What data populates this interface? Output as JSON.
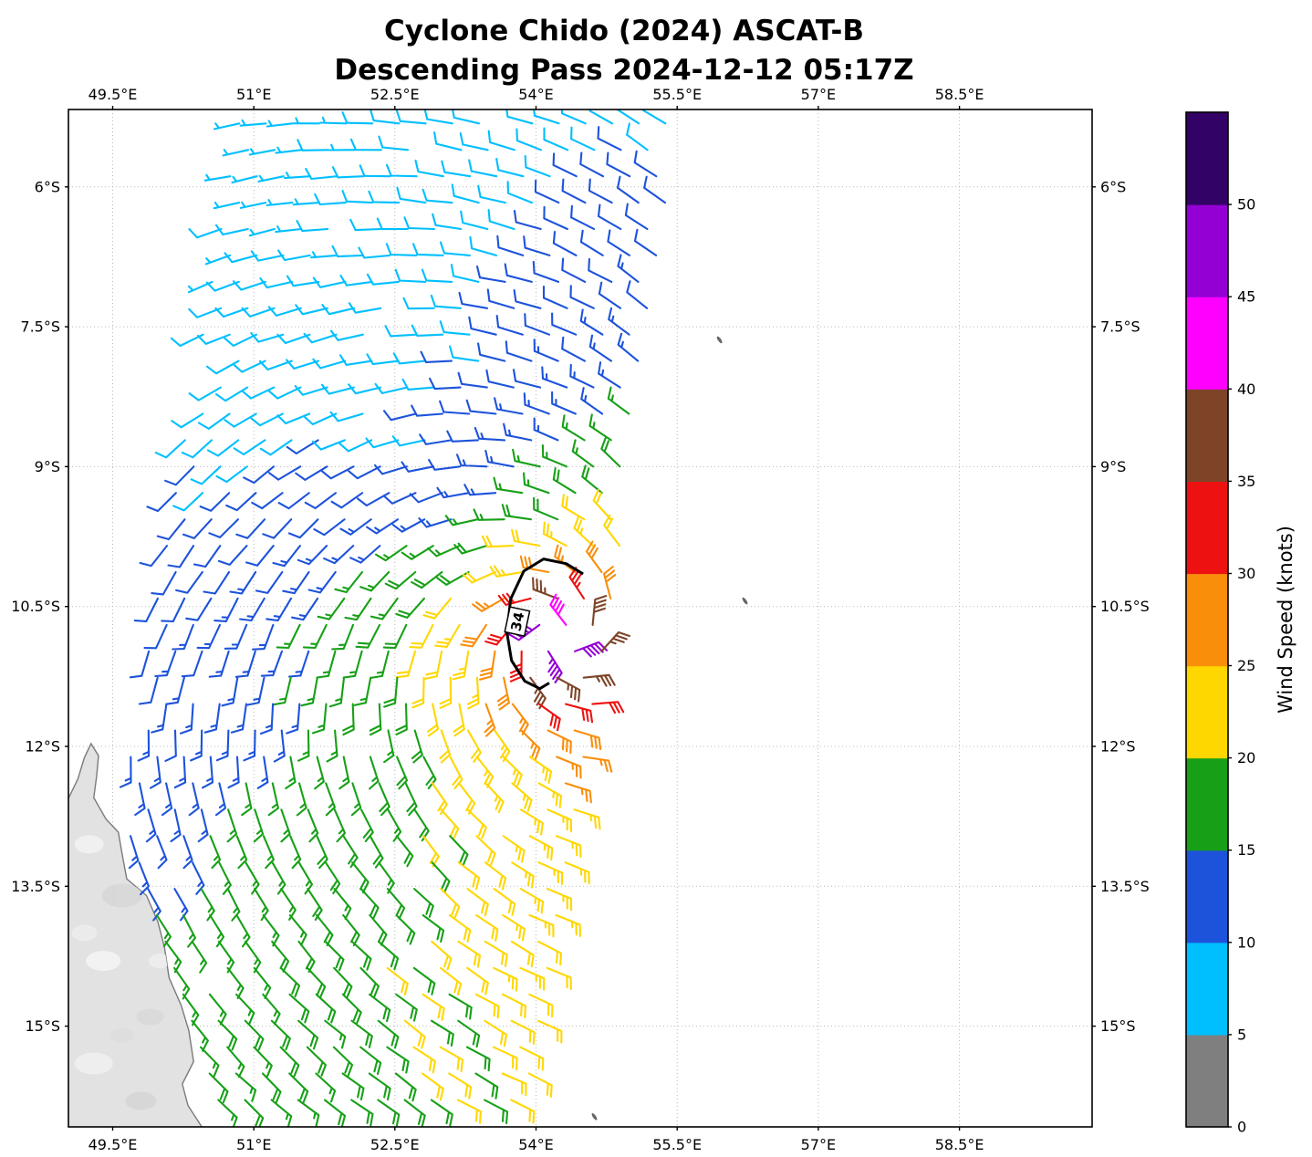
{
  "figure": {
    "title_line1": "Cyclone Chido (2024) ASCAT-B",
    "title_line2": "Descending Pass 2024-12-12 05:17Z"
  },
  "chart_data": {
    "type": "wind_barb_map",
    "title": "Cyclone Chido (2024) ASCAT-B",
    "subtitle": "Descending Pass 2024-12-12 05:17Z",
    "projection": {
      "lon_min": 49.03,
      "lon_max": 59.91,
      "lat_min": -16.08,
      "lat_max": -5.17
    },
    "x_ticks": [
      {
        "label": "49.5°E",
        "value": 49.5
      },
      {
        "label": "51°E",
        "value": 51
      },
      {
        "label": "52.5°E",
        "value": 52.5
      },
      {
        "label": "54°E",
        "value": 54
      },
      {
        "label": "55.5°E",
        "value": 55.5
      },
      {
        "label": "57°E",
        "value": 57
      },
      {
        "label": "58.5°E",
        "value": 58.5
      }
    ],
    "y_ticks": [
      {
        "label": "6°S",
        "value": -6
      },
      {
        "label": "7.5°S",
        "value": -7.5
      },
      {
        "label": "9°S",
        "value": -9
      },
      {
        "label": "10.5°S",
        "value": -10.5
      },
      {
        "label": "12°S",
        "value": -12
      },
      {
        "label": "13.5°S",
        "value": -13.5
      },
      {
        "label": "15°S",
        "value": -15
      }
    ],
    "grid_on": true,
    "colorbar": {
      "label": "Wind Speed (knots)",
      "min": 0,
      "max": 55,
      "bin_kt": 5,
      "tick_values": [
        0,
        5,
        10,
        15,
        20,
        25,
        30,
        35,
        40,
        45,
        50
      ],
      "colors": [
        "#7F7F7F",
        "#00BFFF",
        "#1D53DB",
        "#17A017",
        "#FFD700",
        "#F98E0B",
        "#EE1111",
        "#7D4428",
        "#FF00FF",
        "#9400D3",
        "#320266"
      ]
    },
    "cyclone": {
      "name": "Chido",
      "center_lon": 54.25,
      "center_lat": -10.82,
      "contour_label": "34",
      "contour_label_pos": [
        53.8,
        -10.66
      ],
      "contour_path": [
        [
          54.5,
          -10.15
        ],
        [
          54.32,
          -10.04
        ],
        [
          54.08,
          -9.99
        ],
        [
          53.87,
          -10.12
        ],
        [
          53.73,
          -10.42
        ],
        [
          53.69,
          -10.78
        ],
        [
          53.74,
          -11.08
        ],
        [
          53.88,
          -11.3
        ],
        [
          54.04,
          -11.38
        ],
        [
          54.14,
          -11.32
        ]
      ]
    },
    "wind_field_model": {
      "vmax_kt": 50,
      "rmw_deg": 0.22,
      "inner_exp": 0.35,
      "outer_exp": 0.47,
      "inflow_deg": 22,
      "weak_bearing_deg": 125,
      "weak_amp": 0.34,
      "weak_pow": 4,
      "strong_bearing_deg": -55,
      "strong_amp": 0.26,
      "strong_pow": 2,
      "asym_fade_radius_deg": 2.5,
      "trade_wind": {
        "start_lat": -11,
        "kt_per_deg": 2.0,
        "max_kt": 7,
        "dir_unit": [
          -0.92,
          0.38
        ]
      }
    },
    "swath": {
      "lat_top": -5.32,
      "lat_bottom": -16.05,
      "spacing_deg": 0.283,
      "ref_lat": -5.3,
      "west_base": 50.85,
      "west_slope": 0.17,
      "east_base": 55.62,
      "east_slope": 0.16
    },
    "land": {
      "name": "Madagascar",
      "fill": "#E2E2E2",
      "edge": "#7A7A7A",
      "coast_mask": {
        "lat_start": -11.88,
        "tip_lat": -11.95,
        "tip_lon": 49.28,
        "slope": 0.27,
        "margin": 0.12
      },
      "polygon": [
        [
          49.0,
          -12.62
        ],
        [
          49.13,
          -12.35
        ],
        [
          49.2,
          -12.12
        ],
        [
          49.27,
          -11.97
        ],
        [
          49.35,
          -12.1
        ],
        [
          49.33,
          -12.32
        ],
        [
          49.3,
          -12.55
        ],
        [
          49.43,
          -12.78
        ],
        [
          49.56,
          -12.92
        ],
        [
          49.6,
          -13.15
        ],
        [
          49.65,
          -13.42
        ],
        [
          49.86,
          -13.6
        ],
        [
          49.98,
          -13.88
        ],
        [
          50.05,
          -14.15
        ],
        [
          50.1,
          -14.48
        ],
        [
          50.23,
          -14.78
        ],
        [
          50.31,
          -15.05
        ],
        [
          50.36,
          -15.38
        ],
        [
          50.24,
          -15.62
        ],
        [
          50.3,
          -15.85
        ],
        [
          50.46,
          -16.1
        ],
        [
          49.0,
          -16.1
        ]
      ]
    },
    "islands": [
      [
        55.95,
        -7.64
      ],
      [
        56.22,
        -10.44
      ],
      [
        54.62,
        -15.97
      ]
    ]
  }
}
